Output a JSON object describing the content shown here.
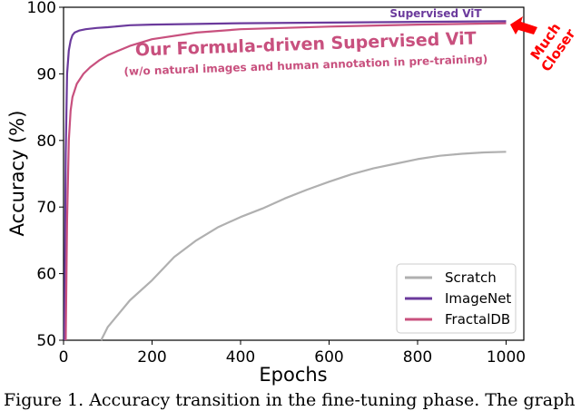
{
  "chart_data": {
    "type": "line",
    "xlabel": "Epochs",
    "ylabel": "Accuracy (%)",
    "xlim": [
      0,
      1040
    ],
    "ylim": [
      50,
      100
    ],
    "xticks": [
      0,
      200,
      400,
      600,
      800,
      1000
    ],
    "yticks": [
      50,
      60,
      70,
      80,
      90,
      100
    ],
    "grid": false,
    "legend_position": "bottom-right",
    "series": [
      {
        "name": "Scratch",
        "color": "#b0b0b0",
        "x": [
          85,
          100,
          150,
          200,
          250,
          300,
          350,
          400,
          450,
          500,
          550,
          600,
          650,
          700,
          750,
          800,
          850,
          900,
          950,
          1000
        ],
        "y": [
          50,
          52,
          56,
          59,
          62.5,
          65,
          67,
          68.5,
          69.8,
          71.3,
          72.6,
          73.8,
          74.9,
          75.8,
          76.5,
          77.2,
          77.7,
          78,
          78.2,
          78.3
        ]
      },
      {
        "name": "ImageNet",
        "color": "#6b3a9c",
        "x": [
          2,
          5,
          8,
          12,
          16,
          20,
          25,
          35,
          50,
          75,
          100,
          150,
          200,
          300,
          400,
          600,
          800,
          1000
        ],
        "y": [
          50,
          78,
          90,
          93.5,
          95,
          95.8,
          96.2,
          96.5,
          96.7,
          96.9,
          97,
          97.3,
          97.4,
          97.5,
          97.6,
          97.7,
          97.8,
          97.9
        ]
      },
      {
        "name": "FractalDB",
        "color": "#c8507e",
        "x": [
          5,
          8,
          12,
          16,
          20,
          30,
          45,
          60,
          80,
          100,
          150,
          200,
          300,
          400,
          600,
          800,
          1000
        ],
        "y": [
          50,
          68,
          80,
          84.5,
          86.5,
          88.5,
          90,
          91,
          92,
          92.8,
          94.2,
          95.2,
          96.2,
          96.7,
          97.1,
          97.4,
          97.6
        ]
      }
    ],
    "annotations": {
      "supervised": "Supervised ViT",
      "formula_title": "Our Formula-driven Supervised ViT",
      "formula_subtitle": "(w/o natural images and human annotation in pre-training)",
      "closer_line1": "Much",
      "closer_line2": "Closer"
    }
  },
  "caption": "Figure 1. Accuracy transition in the fine-tuning phase. The graph"
}
